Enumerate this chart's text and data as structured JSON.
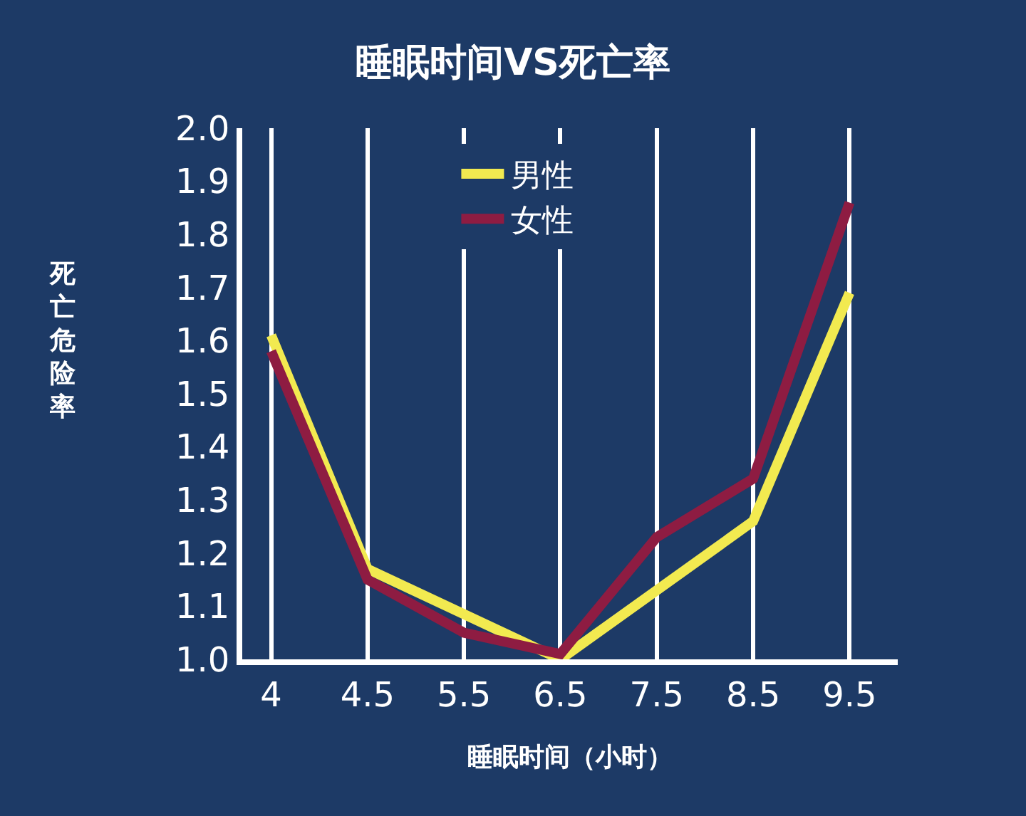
{
  "chart_data": {
    "type": "line",
    "title": "睡眠时间VS死亡率",
    "xlabel": "睡眠时间（小时）",
    "ylabel": "死亡危险率",
    "categories": [
      "4",
      "4.5",
      "5.5",
      "6.5",
      "7.5",
      "8.5",
      "9.5"
    ],
    "series": [
      {
        "name": "男性",
        "color": "#f2ea50",
        "values": [
          1.61,
          1.17,
          null,
          1.0,
          null,
          1.26,
          1.69
        ]
      },
      {
        "name": "女性",
        "color": "#8e1c42",
        "values": [
          1.58,
          1.15,
          1.05,
          1.01,
          1.23,
          1.34,
          1.86
        ]
      }
    ],
    "ylim": [
      1.0,
      2.0
    ],
    "yticks": [
      {
        "value": 1.0,
        "label": "1.0"
      },
      1.1,
      1.2,
      1.3,
      1.4,
      1.5,
      1.6,
      1.7,
      1.8,
      1.9,
      {
        "value": 2.0,
        "label": "2.0"
      }
    ],
    "grid": "x",
    "legend": "top",
    "marker": "none",
    "line_style": "solid"
  }
}
